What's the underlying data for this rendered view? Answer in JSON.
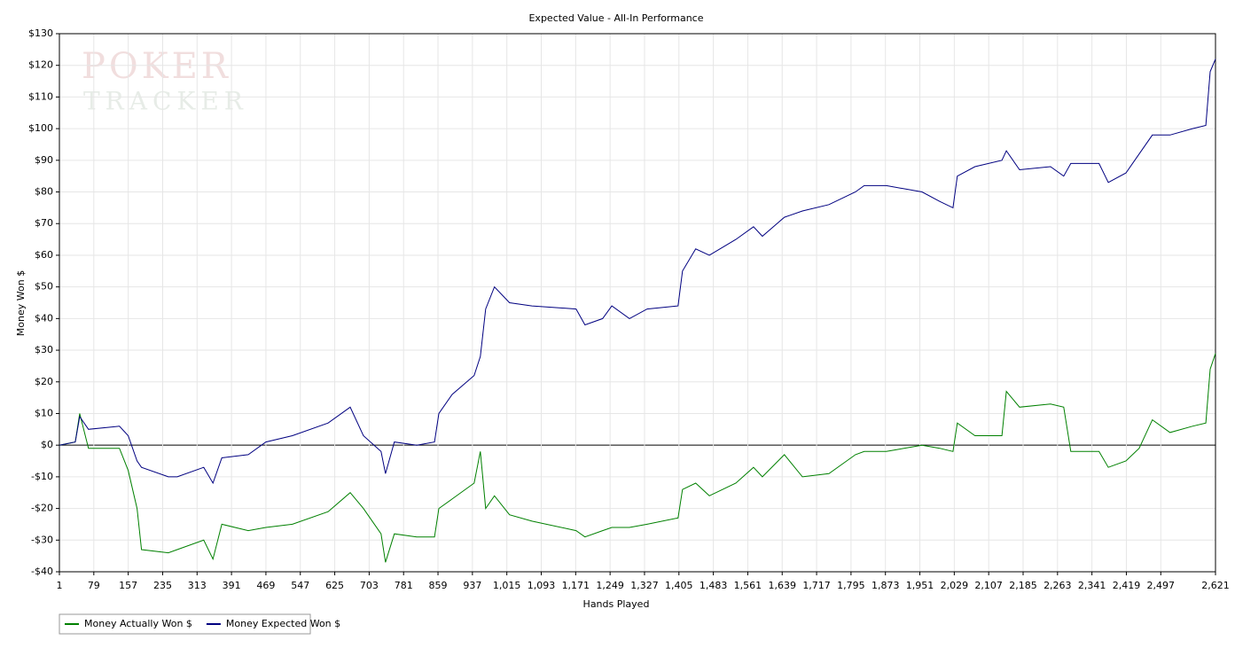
{
  "chart_data": {
    "type": "line",
    "title": "Expected Value - All-In Performance",
    "watermark": [
      "POKER",
      "TRACKER"
    ],
    "x_label": "Hands Played",
    "y_label": "Money Won $",
    "grid": true,
    "legend": "bottom-left",
    "xlim": [
      1,
      2621
    ],
    "ylim": [
      -40,
      130
    ],
    "xticks": [
      1,
      79,
      157,
      235,
      313,
      391,
      469,
      547,
      625,
      703,
      781,
      859,
      937,
      {
        "value": 1015,
        "label": "1,015"
      },
      {
        "value": 1093,
        "label": "1,093"
      },
      {
        "value": 1171,
        "label": "1,171"
      },
      {
        "value": 1249,
        "label": "1,249"
      },
      {
        "value": 1327,
        "label": "1,327"
      },
      {
        "value": 1405,
        "label": "1,405"
      },
      {
        "value": 1483,
        "label": "1,483"
      },
      {
        "value": 1561,
        "label": "1,561"
      },
      {
        "value": 1639,
        "label": "1,639"
      },
      {
        "value": 1717,
        "label": "1,717"
      },
      {
        "value": 1795,
        "label": "1,795"
      },
      {
        "value": 1873,
        "label": "1,873"
      },
      {
        "value": 1951,
        "label": "1,951"
      },
      {
        "value": 2029,
        "label": "2,029"
      },
      {
        "value": 2107,
        "label": "2,107"
      },
      {
        "value": 2185,
        "label": "2,185"
      },
      {
        "value": 2263,
        "label": "2,263"
      },
      {
        "value": 2341,
        "label": "2,341"
      },
      {
        "value": 2419,
        "label": "2,419"
      },
      {
        "value": 2497,
        "label": "2,497"
      },
      {
        "value": 2621,
        "label": "2,621"
      }
    ],
    "yticks": [
      {
        "value": -40,
        "label": "-$40"
      },
      {
        "value": -30,
        "label": "-$30"
      },
      {
        "value": -20,
        "label": "-$20"
      },
      {
        "value": -10,
        "label": "-$10"
      },
      {
        "value": 0,
        "label": "$0"
      },
      {
        "value": 10,
        "label": "$10"
      },
      {
        "value": 20,
        "label": "$20"
      },
      {
        "value": 30,
        "label": "$30"
      },
      {
        "value": 40,
        "label": "$40"
      },
      {
        "value": 50,
        "label": "$50"
      },
      {
        "value": 60,
        "label": "$60"
      },
      {
        "value": 70,
        "label": "$70"
      },
      {
        "value": 80,
        "label": "$80"
      },
      {
        "value": 90,
        "label": "$90"
      },
      {
        "value": 100,
        "label": "$100"
      },
      {
        "value": 110,
        "label": "$110"
      },
      {
        "value": 120,
        "label": "$120"
      },
      {
        "value": 130,
        "label": "$130"
      }
    ],
    "x": [
      1,
      37,
      47,
      67,
      137,
      157,
      177,
      187,
      248,
      268,
      328,
      349,
      369,
      429,
      469,
      529,
      610,
      660,
      690,
      730,
      740,
      760,
      811,
      851,
      861,
      891,
      941,
      955,
      967,
      987,
      1021,
      1072,
      1172,
      1192,
      1232,
      1253,
      1293,
      1333,
      1403,
      1413,
      1443,
      1474,
      1534,
      1574,
      1594,
      1644,
      1685,
      1745,
      1805,
      1825,
      1875,
      1956,
      1996,
      2026,
      2036,
      2076,
      2137,
      2147,
      2177,
      2247,
      2277,
      2293,
      2357,
      2378,
      2418,
      2448,
      2478,
      2518,
      2569,
      2599,
      2609,
      2621
    ],
    "series": [
      {
        "name": "Money Actually Won $",
        "color": "#008000",
        "values": [
          0,
          1,
          10,
          -1,
          -1,
          -8,
          -20,
          -33,
          -34,
          -33,
          -30,
          -36,
          -25,
          -27,
          -26,
          -25,
          -21,
          -15,
          -20,
          -28,
          -37,
          -28,
          -29,
          -29,
          -20,
          -17,
          -12,
          -2,
          -20,
          -16,
          -22,
          -24,
          -27,
          -29,
          -27,
          -26,
          -26,
          -25,
          -23,
          -14,
          -12,
          -16,
          -12,
          -7,
          -10,
          -3,
          -10,
          -9,
          -3,
          -2,
          -2,
          0,
          -1,
          -2,
          7,
          3,
          3,
          17,
          12,
          13,
          12,
          -2,
          -2,
          -7,
          -5,
          -1,
          8,
          4,
          6,
          7,
          24,
          29
        ]
      },
      {
        "name": "Money Expected Won $",
        "color": "#000080",
        "values": [
          0,
          1,
          9,
          5,
          6,
          3,
          -5,
          -7,
          -10,
          -10,
          -7,
          -12,
          -4,
          -3,
          1,
          3,
          7,
          12,
          3,
          -2,
          -9,
          1,
          0,
          1,
          10,
          16,
          22,
          28,
          43,
          50,
          45,
          44,
          43,
          38,
          40,
          44,
          40,
          43,
          44,
          55,
          62,
          60,
          65,
          69,
          66,
          72,
          74,
          76,
          80,
          82,
          82,
          80,
          77,
          75,
          85,
          88,
          90,
          93,
          87,
          88,
          85,
          89,
          89,
          83,
          86,
          92,
          98,
          98,
          100,
          101,
          118,
          122
        ]
      }
    ]
  }
}
